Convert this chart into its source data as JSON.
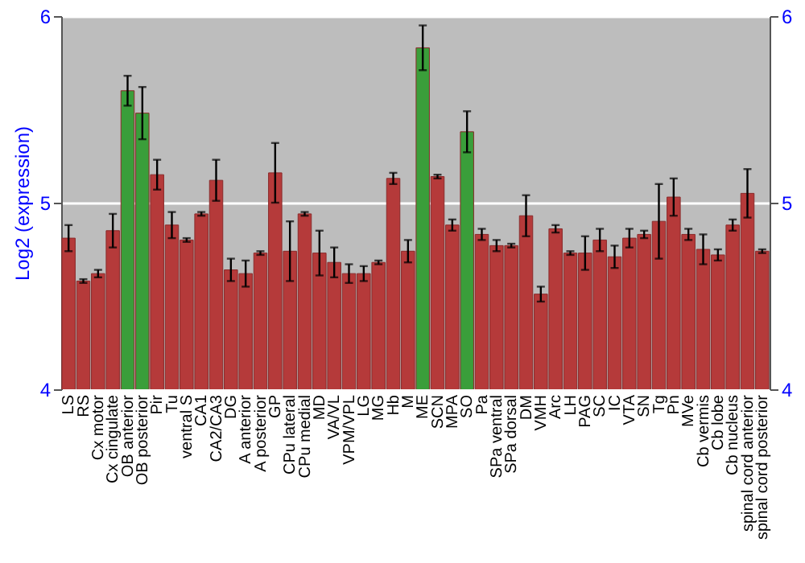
{
  "chart_data": {
    "type": "bar",
    "ylabel": "Log2 (expression)",
    "categories": [
      "LS",
      "RS",
      "Cx motor",
      "Cx cingulate",
      "OB anterior",
      "OB posterior",
      "Pir",
      "Tu",
      "ventral S",
      "CA1",
      "CA2/CA3",
      "DG",
      "A anterior",
      "A posterior",
      "GP",
      "CPu lateral",
      "CPu medial",
      "MD",
      "VA/VL",
      "VPM/VPL",
      "LG",
      "MG",
      "Hb",
      "M",
      "ME",
      "SCN",
      "MPA",
      "SO",
      "Pa",
      "SPa ventral",
      "SPa dorsal",
      "DM",
      "VMH",
      "Arc",
      "LH",
      "PAG",
      "SC",
      "IC",
      "VTA",
      "SN",
      "Tg",
      "Pn",
      "MVe",
      "Cb vermis",
      "Cb lobe",
      "Cb nucleus",
      "spinal cord anterior",
      "spinal cord posterior"
    ],
    "values": [
      4.81,
      4.58,
      4.62,
      4.85,
      5.6,
      5.48,
      5.15,
      4.88,
      4.8,
      4.94,
      5.12,
      4.64,
      4.62,
      4.73,
      5.16,
      4.74,
      4.94,
      4.73,
      4.68,
      4.62,
      4.62,
      4.68,
      5.13,
      4.74,
      5.83,
      5.14,
      4.88,
      5.38,
      4.83,
      4.77,
      4.77,
      4.93,
      4.51,
      4.86,
      4.73,
      4.73,
      4.8,
      4.71,
      4.81,
      4.83,
      4.9,
      5.03,
      4.83,
      4.75,
      4.72,
      4.88,
      5.05,
      4.74
    ],
    "errors": [
      0.07,
      0.01,
      0.02,
      0.09,
      0.08,
      0.14,
      0.08,
      0.07,
      0.01,
      0.01,
      0.11,
      0.06,
      0.07,
      0.01,
      0.16,
      0.16,
      0.01,
      0.12,
      0.08,
      0.05,
      0.04,
      0.01,
      0.03,
      0.06,
      0.12,
      0.01,
      0.03,
      0.11,
      0.03,
      0.03,
      0.01,
      0.11,
      0.04,
      0.02,
      0.01,
      0.09,
      0.06,
      0.06,
      0.05,
      0.02,
      0.2,
      0.1,
      0.03,
      0.08,
      0.03,
      0.03,
      0.13,
      0.01
    ],
    "colors": [
      "#b53a3a",
      "#b53a3a",
      "#b53a3a",
      "#b53a3a",
      "#3a9e3a",
      "#3a9e3a",
      "#b53a3a",
      "#b53a3a",
      "#b53a3a",
      "#b53a3a",
      "#b53a3a",
      "#b53a3a",
      "#b53a3a",
      "#b53a3a",
      "#b53a3a",
      "#b53a3a",
      "#b53a3a",
      "#b53a3a",
      "#b53a3a",
      "#b53a3a",
      "#b53a3a",
      "#b53a3a",
      "#b53a3a",
      "#b53a3a",
      "#3a9e3a",
      "#b53a3a",
      "#b53a3a",
      "#3a9e3a",
      "#b53a3a",
      "#b53a3a",
      "#b53a3a",
      "#b53a3a",
      "#b53a3a",
      "#b53a3a",
      "#b53a3a",
      "#b53a3a",
      "#b53a3a",
      "#b53a3a",
      "#b53a3a",
      "#b53a3a",
      "#b53a3a",
      "#b53a3a",
      "#b53a3a",
      "#b53a3a",
      "#b53a3a",
      "#b53a3a",
      "#b53a3a",
      "#b53a3a"
    ],
    "ylim": [
      4,
      6
    ],
    "yticks": [
      4,
      5,
      6
    ],
    "y2lim": [
      4,
      6
    ],
    "y2ticks": [
      4,
      5,
      6
    ],
    "grid": "y"
  }
}
